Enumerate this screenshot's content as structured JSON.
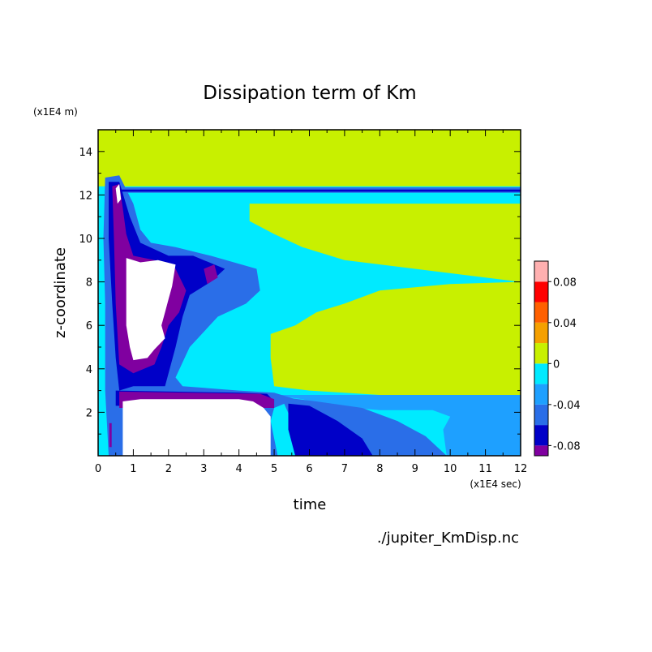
{
  "chart_data": {
    "type": "heatmap",
    "title": "Dissipation term of Km",
    "xlabel": "time",
    "ylabel": "z-coordinate",
    "x_unit": "(x1E4 sec)",
    "y_unit": "(x1E4 m)",
    "source_file": "./jupiter_KmDisp.nc",
    "xlim": [
      0,
      12
    ],
    "ylim": [
      0,
      15
    ],
    "x_ticks": [
      "0",
      "1",
      "2",
      "3",
      "4",
      "5",
      "6",
      "7",
      "8",
      "9",
      "10",
      "11",
      "12"
    ],
    "y_ticks": [
      "2",
      "4",
      "6",
      "8",
      "10",
      "12",
      "14"
    ],
    "colorbar": {
      "ticks": [
        "0.08",
        "0.04",
        "0",
        "-0.04",
        "-0.08"
      ],
      "levels": [
        {
          "from": -0.09,
          "to": -0.08,
          "color": "#8000a0"
        },
        {
          "from": -0.08,
          "to": -0.06,
          "color": "#0000c8"
        },
        {
          "from": -0.06,
          "to": -0.04,
          "color": "#2a6ee8"
        },
        {
          "from": -0.04,
          "to": -0.02,
          "color": "#1ea0ff"
        },
        {
          "from": -0.02,
          "to": 0.0,
          "color": "#00eaff"
        },
        {
          "from": 0.0,
          "to": 0.02,
          "color": "#c8f000"
        },
        {
          "from": 0.02,
          "to": 0.04,
          "color": "#f5a000"
        },
        {
          "from": 0.04,
          "to": 0.06,
          "color": "#ff6000"
        },
        {
          "from": 0.06,
          "to": 0.08,
          "color": "#ff0000"
        },
        {
          "from": 0.08,
          "to": 0.1,
          "color": "#ffb0b0"
        }
      ]
    },
    "regions": [
      {
        "value": -0.01,
        "color": "#00eaff",
        "points": [
          [
            0,
            0
          ],
          [
            12,
            0
          ],
          [
            12,
            15
          ],
          [
            0,
            15
          ]
        ]
      },
      {
        "value": 0.01,
        "color": "#c8f000",
        "points": [
          [
            0,
            15
          ],
          [
            12,
            15
          ],
          [
            12,
            12.4
          ],
          [
            0.4,
            12.4
          ],
          [
            0.5,
            12.9
          ],
          [
            0.3,
            12.4
          ],
          [
            0,
            12.4
          ]
        ]
      },
      {
        "value": 0.01,
        "color": "#c8f000",
        "points": [
          [
            4.3,
            11.6
          ],
          [
            12,
            11.6
          ],
          [
            12,
            8.0
          ],
          [
            11,
            8.2
          ],
          [
            9,
            8.6
          ],
          [
            7,
            9.0
          ],
          [
            5.8,
            9.6
          ],
          [
            5,
            10.2
          ],
          [
            4.3,
            10.8
          ]
        ]
      },
      {
        "value": 0.01,
        "color": "#c8f000",
        "points": [
          [
            12,
            8.0
          ],
          [
            12,
            2.8
          ],
          [
            8,
            2.8
          ],
          [
            6,
            3.0
          ],
          [
            5,
            3.2
          ],
          [
            4.9,
            4.5
          ],
          [
            4.9,
            5.6
          ],
          [
            5.6,
            6.0
          ],
          [
            6.2,
            6.6
          ],
          [
            7,
            7.0
          ],
          [
            8,
            7.6
          ],
          [
            10,
            7.9
          ]
        ]
      },
      {
        "value": 0.01,
        "color": "#c8f000",
        "points": [
          [
            12,
            3.4
          ],
          [
            12,
            3.7
          ],
          [
            5.5,
            3.7
          ],
          [
            5.5,
            3.4
          ]
        ]
      },
      {
        "value": -0.03,
        "color": "#1ea0ff",
        "points": [
          [
            4.9,
            2.8
          ],
          [
            12,
            2.8
          ],
          [
            12,
            0
          ],
          [
            9.9,
            0
          ],
          [
            9.8,
            1.2
          ],
          [
            10.0,
            1.8
          ],
          [
            9.5,
            2.1
          ],
          [
            8,
            2.1
          ],
          [
            6.6,
            2.3
          ],
          [
            5.8,
            2.6
          ]
        ]
      },
      {
        "value": -0.05,
        "color": "#2a6ee8",
        "points": [
          [
            5.2,
            2.7
          ],
          [
            6.2,
            2.5
          ],
          [
            7.5,
            2.2
          ],
          [
            8.5,
            1.6
          ],
          [
            9.3,
            0.9
          ],
          [
            9.9,
            0
          ],
          [
            6.5,
            0
          ],
          [
            5.8,
            0.8
          ],
          [
            5.5,
            1.6
          ]
        ]
      },
      {
        "value": -0.07,
        "color": "#0000c8",
        "points": [
          [
            5.4,
            2.4
          ],
          [
            6.0,
            2.3
          ],
          [
            6.8,
            1.6
          ],
          [
            7.5,
            0.8
          ],
          [
            7.8,
            0
          ],
          [
            5.6,
            0
          ],
          [
            5.4,
            1.2
          ]
        ]
      },
      {
        "value": -0.05,
        "color": "#2a6ee8",
        "points": [
          [
            0.2,
            12.8
          ],
          [
            0.6,
            12.9
          ],
          [
            1.0,
            11.6
          ],
          [
            1.2,
            10.4
          ],
          [
            1.5,
            9.8
          ],
          [
            2.2,
            9.6
          ],
          [
            3.2,
            9.2
          ],
          [
            4.5,
            8.6
          ],
          [
            4.6,
            7.6
          ],
          [
            4.2,
            7.0
          ],
          [
            3.4,
            6.4
          ],
          [
            2.6,
            5.0
          ],
          [
            2.2,
            3.6
          ],
          [
            2.4,
            3.2
          ],
          [
            4,
            3.0
          ],
          [
            5,
            2.9
          ],
          [
            5.6,
            2.6
          ],
          [
            5,
            2.2
          ],
          [
            4.9,
            1.6
          ],
          [
            5.1,
            0
          ],
          [
            0.3,
            0
          ],
          [
            0.2,
            3
          ],
          [
            0.2,
            7
          ],
          [
            0.15,
            10
          ]
        ]
      },
      {
        "value": -0.05,
        "color": "#2a6ee8",
        "points": [
          [
            0.4,
            12.35
          ],
          [
            12,
            12.35
          ],
          [
            12,
            12.1
          ],
          [
            0.4,
            12.1
          ]
        ]
      },
      {
        "value": -0.07,
        "color": "#0000c8",
        "points": [
          [
            0.3,
            12.6
          ],
          [
            0.6,
            12.6
          ],
          [
            0.9,
            11.0
          ],
          [
            1.2,
            9.8
          ],
          [
            2.0,
            9.2
          ],
          [
            2.7,
            9.2
          ],
          [
            3.6,
            8.6
          ],
          [
            3.2,
            8.0
          ],
          [
            2.6,
            7.4
          ],
          [
            2.4,
            6.4
          ],
          [
            2.2,
            5.0
          ],
          [
            1.9,
            3.2
          ],
          [
            1.0,
            3.2
          ],
          [
            0.6,
            3.0
          ],
          [
            0.5,
            4.5
          ],
          [
            0.4,
            7
          ],
          [
            0.3,
            10
          ]
        ]
      },
      {
        "value": -0.07,
        "color": "#0000c8",
        "points": [
          [
            0.5,
            3.0
          ],
          [
            4,
            2.9
          ],
          [
            4.8,
            2.85
          ],
          [
            5,
            2.5
          ],
          [
            4.8,
            2.2
          ],
          [
            0.5,
            2.3
          ]
        ]
      },
      {
        "value": -0.07,
        "color": "#0000c8",
        "points": [
          [
            0.4,
            12.25
          ],
          [
            12,
            12.25
          ],
          [
            12,
            12.15
          ],
          [
            0.4,
            12.15
          ]
        ]
      },
      {
        "value": -0.085,
        "color": "#8000a0",
        "points": [
          [
            0.6,
            2.95
          ],
          [
            4.6,
            2.85
          ],
          [
            5.0,
            2.6
          ],
          [
            5.0,
            2.2
          ],
          [
            0.6,
            2.2
          ]
        ]
      },
      {
        "value": -0.085,
        "color": "#8000a0",
        "points": [
          [
            0.4,
            12.4
          ],
          [
            0.6,
            12.5
          ],
          [
            0.7,
            11.4
          ],
          [
            0.8,
            10.2
          ],
          [
            1.0,
            9.2
          ],
          [
            1.6,
            9.0
          ],
          [
            2.2,
            8.6
          ],
          [
            2.5,
            7.6
          ],
          [
            2.3,
            6.6
          ],
          [
            2.0,
            6.0
          ],
          [
            1.8,
            5.0
          ],
          [
            1.6,
            4.2
          ],
          [
            1.0,
            3.8
          ],
          [
            0.6,
            4.2
          ],
          [
            0.5,
            7
          ],
          [
            0.45,
            10
          ]
        ]
      },
      {
        "value": -0.085,
        "color": "#8000a0",
        "points": [
          [
            3.0,
            8.6
          ],
          [
            3.3,
            8.8
          ],
          [
            3.4,
            8.2
          ],
          [
            3.1,
            7.9
          ]
        ]
      },
      {
        "value": -0.1,
        "color": "#ffffff",
        "points": [
          [
            0.7,
            0
          ],
          [
            4.9,
            0
          ],
          [
            4.9,
            1.8
          ],
          [
            4.7,
            2.2
          ],
          [
            4.4,
            2.5
          ],
          [
            4.0,
            2.6
          ],
          [
            1.2,
            2.6
          ],
          [
            0.7,
            2.5
          ]
        ]
      },
      {
        "value": -0.1,
        "color": "#ffffff",
        "points": [
          [
            0.8,
            9.1
          ],
          [
            1.2,
            8.9
          ],
          [
            1.7,
            9.0
          ],
          [
            2.2,
            8.8
          ],
          [
            2.1,
            7.8
          ],
          [
            2.0,
            7.2
          ],
          [
            1.9,
            6.6
          ],
          [
            1.8,
            6.0
          ],
          [
            1.9,
            5.4
          ],
          [
            1.6,
            4.9
          ],
          [
            1.4,
            4.5
          ],
          [
            1.0,
            4.4
          ],
          [
            0.9,
            5.0
          ],
          [
            0.8,
            6.0
          ],
          [
            0.8,
            7.5
          ]
        ]
      },
      {
        "value": -0.1,
        "color": "#ffffff",
        "points": [
          [
            0.5,
            12.3
          ],
          [
            0.6,
            12.5
          ],
          [
            0.65,
            11.8
          ],
          [
            0.55,
            11.6
          ]
        ]
      }
    ],
    "lines": [
      {
        "value": -0.085,
        "color": "#8000a0",
        "points": [
          [
            0.35,
            1.5
          ],
          [
            0.35,
            0.4
          ]
        ]
      }
    ]
  }
}
